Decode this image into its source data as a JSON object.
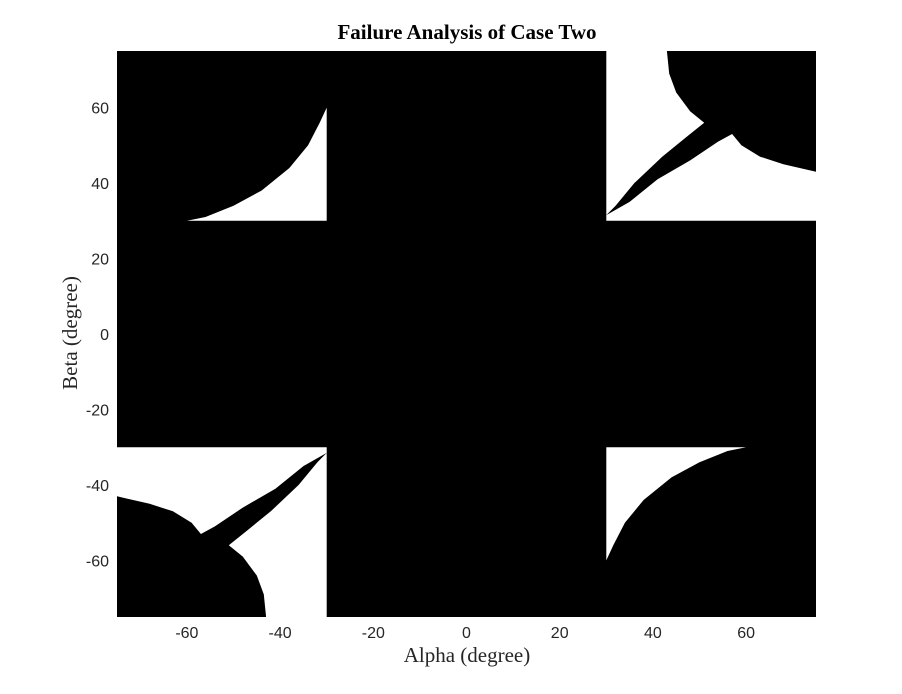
{
  "chart_data": {
    "type": "heatmap",
    "title": "Failure Analysis of Case Two",
    "xlabel": "Alpha (degree)",
    "ylabel": "Beta (degree)",
    "xlim": [
      -75,
      75
    ],
    "ylim": [
      -75,
      75
    ],
    "xticks": [
      -60,
      -40,
      -20,
      0,
      20,
      40,
      60
    ],
    "yticks": [
      -60,
      -40,
      -20,
      0,
      20,
      40,
      60
    ],
    "colors": {
      "failure": "#000000",
      "safe": "#ffffff"
    },
    "grid": false,
    "regions": [
      {
        "name": "upper-left",
        "color": "safe",
        "points": [
          [
            -30,
            60
          ],
          [
            -30,
            30
          ],
          [
            -60,
            30
          ],
          [
            -56,
            31
          ],
          [
            -50,
            34
          ],
          [
            -44,
            38
          ],
          [
            -38,
            44
          ],
          [
            -34,
            50
          ],
          [
            -31.5,
            56
          ]
        ]
      },
      {
        "name": "lower-right",
        "color": "safe",
        "points": [
          [
            30,
            -60
          ],
          [
            30,
            -30
          ],
          [
            60,
            -30
          ],
          [
            56,
            -31
          ],
          [
            50,
            -34
          ],
          [
            44,
            -38
          ],
          [
            38,
            -44
          ],
          [
            34,
            -50
          ],
          [
            31.5,
            -56
          ]
        ]
      },
      {
        "name": "upper-right",
        "color": "safe",
        "points": [
          [
            30,
            75
          ],
          [
            43,
            75
          ],
          [
            43.5,
            69
          ],
          [
            45,
            64
          ],
          [
            48,
            59
          ],
          [
            51,
            56
          ],
          [
            47,
            52
          ],
          [
            42,
            47
          ],
          [
            36,
            40
          ],
          [
            32,
            34
          ],
          [
            30,
            31.5
          ],
          [
            35,
            35
          ],
          [
            41,
            41
          ],
          [
            48,
            46
          ],
          [
            54,
            51
          ],
          [
            57,
            53
          ],
          [
            59,
            50
          ],
          [
            63,
            47
          ],
          [
            68,
            45
          ],
          [
            75,
            43
          ],
          [
            75,
            30
          ],
          [
            30,
            30
          ]
        ]
      },
      {
        "name": "lower-left",
        "color": "safe",
        "points": [
          [
            -30,
            -75
          ],
          [
            -43,
            -75
          ],
          [
            -43.5,
            -69
          ],
          [
            -45,
            -64
          ],
          [
            -48,
            -59
          ],
          [
            -51,
            -56
          ],
          [
            -47,
            -52
          ],
          [
            -42,
            -47
          ],
          [
            -36,
            -40
          ],
          [
            -32,
            -34
          ],
          [
            -30,
            -31.5
          ],
          [
            -35,
            -35
          ],
          [
            -41,
            -41
          ],
          [
            -48,
            -46
          ],
          [
            -54,
            -51
          ],
          [
            -57,
            -53
          ],
          [
            -59,
            -50
          ],
          [
            -63,
            -47
          ],
          [
            -68,
            -45
          ],
          [
            -75,
            -43
          ],
          [
            -75,
            -30
          ],
          [
            -30,
            -30
          ]
        ]
      }
    ]
  }
}
